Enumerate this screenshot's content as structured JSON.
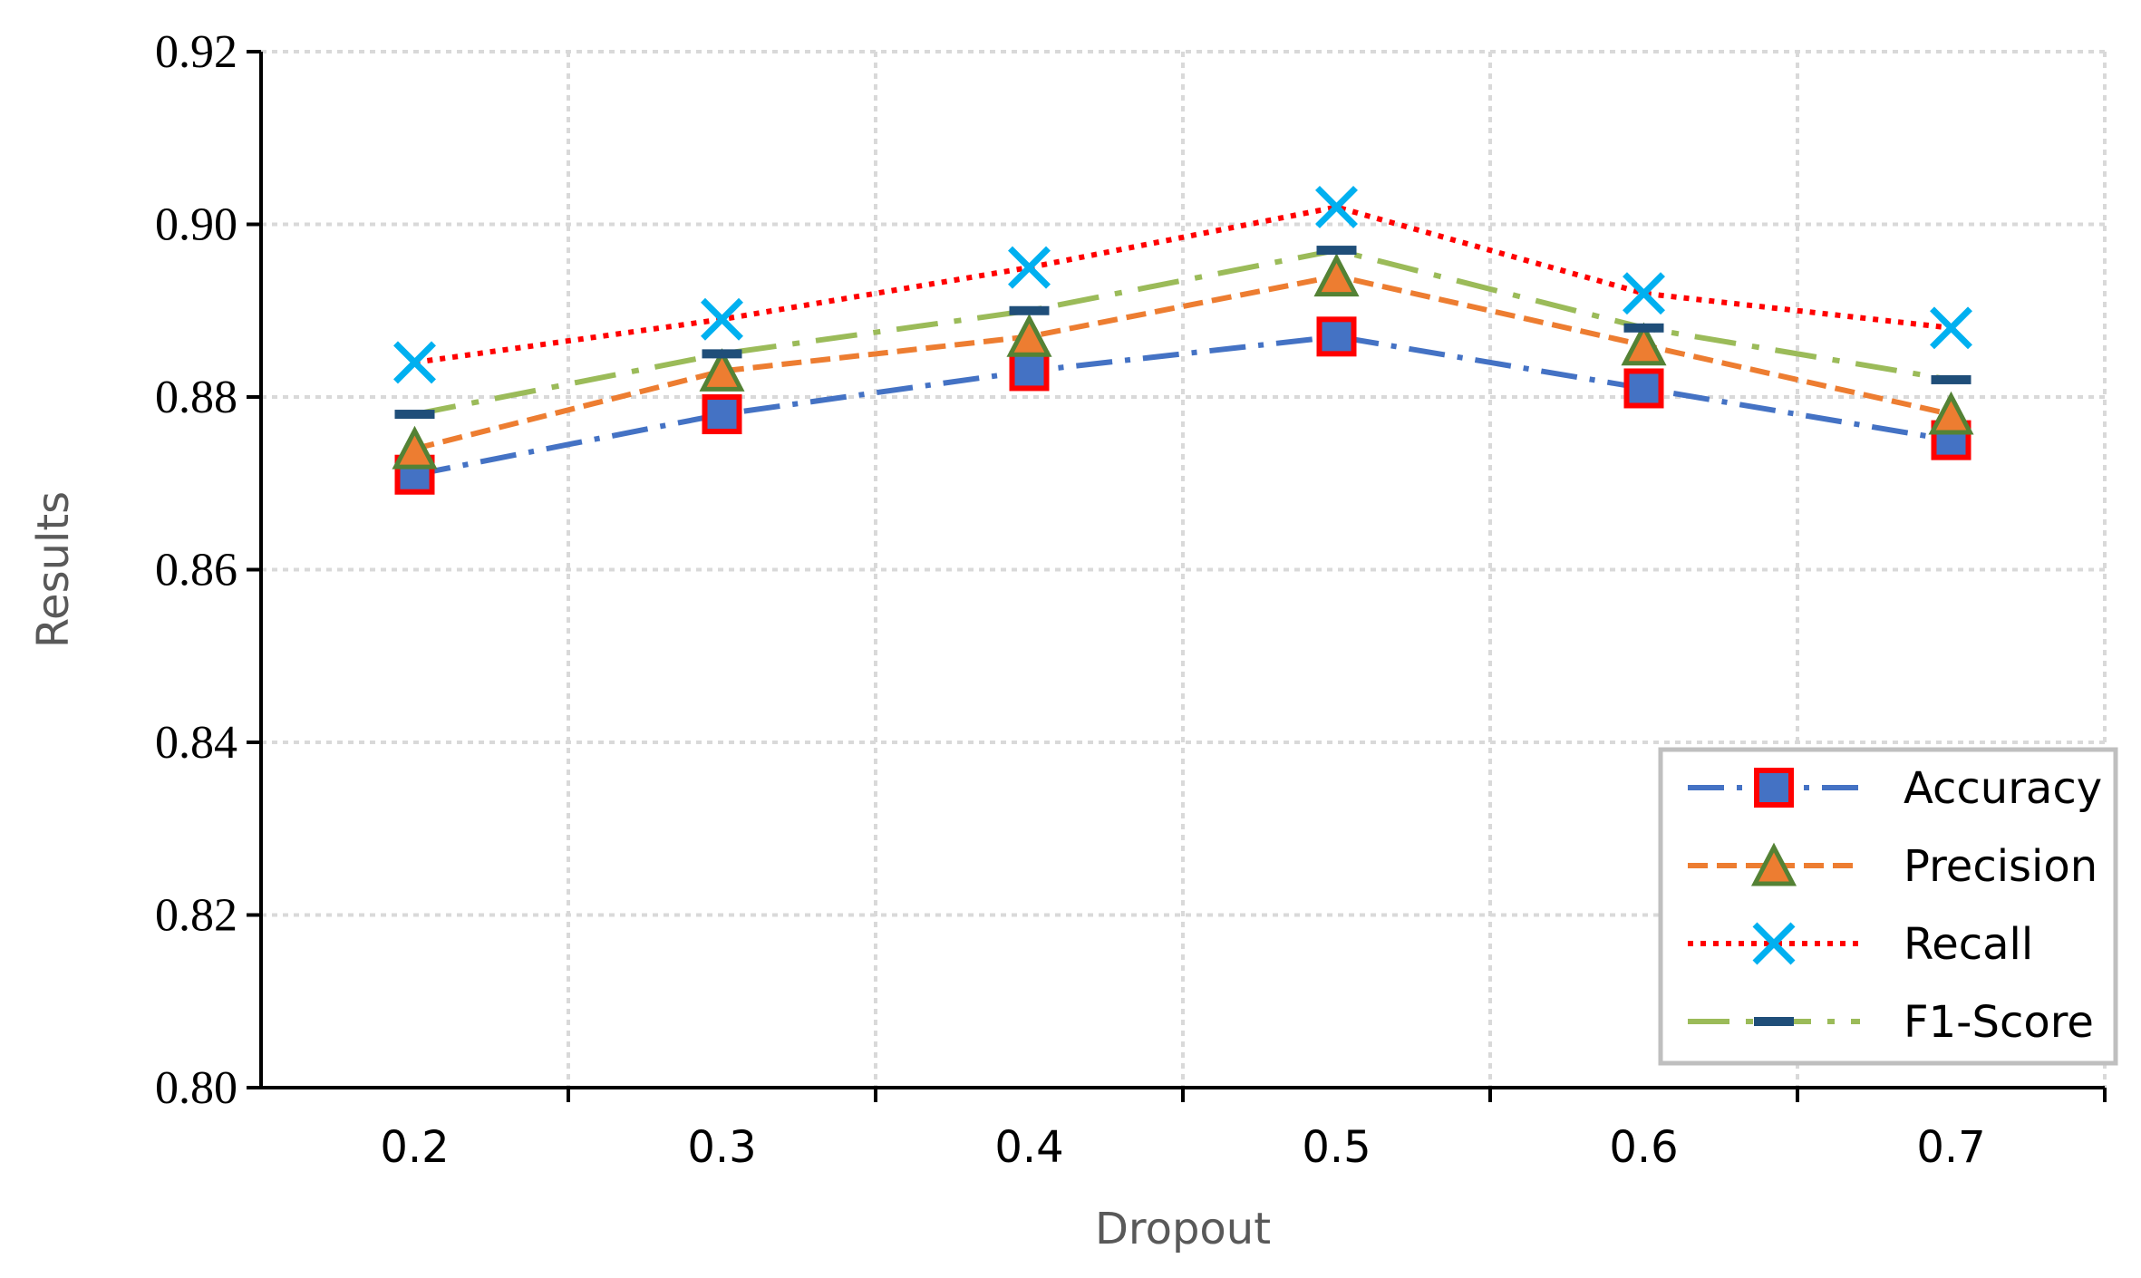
{
  "chart_data": {
    "type": "line",
    "title": "",
    "xlabel": "Dropout",
    "ylabel": "Results",
    "x": [
      0.2,
      0.3,
      0.4,
      0.5,
      0.6,
      0.7
    ],
    "x_tick_labels": [
      "0.2",
      "0.3",
      "0.4",
      "0.5",
      "0.6",
      "0.7"
    ],
    "xlim": [
      0.15,
      0.75
    ],
    "ylim": [
      0.8,
      0.92
    ],
    "y_ticks": [
      0.8,
      0.82,
      0.84,
      0.86,
      0.88,
      0.9,
      0.92
    ],
    "y_tick_labels": [
      "0.80",
      "0.82",
      "0.84",
      "0.86",
      "0.88",
      "0.90",
      "0.92"
    ],
    "grid": true,
    "legend_position": "bottom-right",
    "series": [
      {
        "name": "Accuracy",
        "values": [
          0.871,
          0.878,
          0.883,
          0.887,
          0.881,
          0.875
        ],
        "line_color": "#4472C4",
        "marker": "square",
        "marker_fill": "#4472C4",
        "marker_edge": "#FF0000",
        "dash": "dashdot"
      },
      {
        "name": "Precision",
        "values": [
          0.874,
          0.883,
          0.887,
          0.894,
          0.886,
          0.878
        ],
        "line_color": "#ED7D31",
        "marker": "triangle",
        "marker_fill": "#ED7D31",
        "marker_edge": "#548235",
        "dash": "dash"
      },
      {
        "name": "Recall",
        "values": [
          0.884,
          0.889,
          0.895,
          0.902,
          0.892,
          0.888
        ],
        "line_color": "#FF0000",
        "marker": "x",
        "marker_fill": "#00B0F0",
        "marker_edge": "#00B0F0",
        "dash": "dot"
      },
      {
        "name": "F1-Score",
        "values": [
          0.878,
          0.885,
          0.89,
          0.897,
          0.888,
          0.882
        ],
        "line_color": "#9BBB59",
        "marker": "dash",
        "marker_fill": "#1F4E79",
        "marker_edge": "#1F4E79",
        "dash": "longdashdot"
      }
    ]
  }
}
